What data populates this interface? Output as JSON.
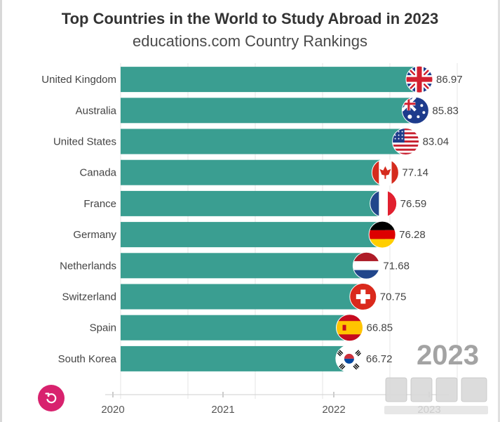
{
  "chart_data": {
    "type": "bar",
    "orientation": "horizontal",
    "title": "Top Countries in the World to Study Abroad in 2023",
    "subtitle": "educations.com Country Rankings",
    "categories": [
      "United Kingdom",
      "Australia",
      "United States",
      "Canada",
      "France",
      "Germany",
      "Netherlands",
      "Switzerland",
      "Spain",
      "South Korea"
    ],
    "values": [
      86.97,
      85.83,
      83.04,
      77.14,
      76.59,
      76.28,
      71.68,
      70.75,
      66.85,
      66.72
    ],
    "value_labels": [
      "86.97",
      "85.83",
      "83.04",
      "77.14",
      "76.59",
      "76.28",
      "71.68",
      "70.75",
      "66.85",
      "66.72"
    ],
    "flag_icons": [
      "flag-united-kingdom-icon",
      "flag-australia-icon",
      "flag-united-states-icon",
      "flag-canada-icon",
      "flag-france-icon",
      "flag-germany-icon",
      "flag-netherlands-icon",
      "flag-switzerland-icon",
      "flag-spain-icon",
      "flag-south-korea-icon"
    ],
    "x_ticks": [
      "2020",
      "2021",
      "2022",
      "2023"
    ],
    "xlabel": "",
    "ylabel": "",
    "xlim": [
      0,
      90
    ],
    "current_year": "2023",
    "bar_color": "#3a9e91",
    "grid": true
  },
  "controls": {
    "replay_icon": "replay-icon"
  },
  "watermark": {
    "icon": "watermark-logo-icon"
  }
}
